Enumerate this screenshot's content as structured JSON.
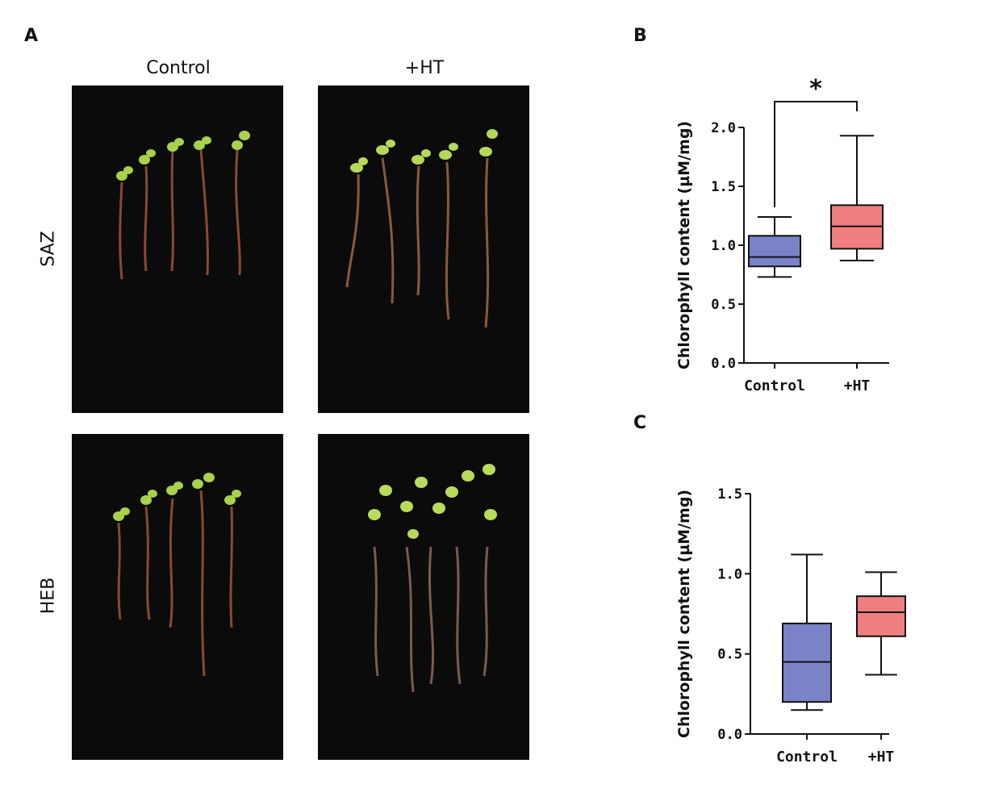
{
  "panels": {
    "a_label": "A",
    "b_label": "B",
    "c_label": "C"
  },
  "photos": {
    "columns": [
      "Control",
      "+HT"
    ],
    "rows": [
      "SAZ",
      "HEB"
    ]
  },
  "chart_data": [
    {
      "type": "box",
      "panel": "B",
      "title": "",
      "xlabel": "",
      "ylabel": "Chlorophyll content (µM/mg)",
      "categories": [
        "Control",
        "+HT"
      ],
      "ylim": [
        0,
        2.0
      ],
      "yticks": [
        "0.0",
        "0.5",
        "1.0",
        "1.5",
        "2.0"
      ],
      "grid": false,
      "boxes": [
        {
          "category": "Control",
          "min": 0.73,
          "q1": 0.82,
          "median": 0.9,
          "q3": 1.08,
          "max": 1.24,
          "color": "#7b83c8"
        },
        {
          "category": "+HT",
          "min": 0.87,
          "q1": 0.97,
          "median": 1.16,
          "q3": 1.34,
          "max": 1.93,
          "color": "#ef7f7f"
        }
      ],
      "significance": {
        "between": [
          "Control",
          "+HT"
        ],
        "label": "*"
      }
    },
    {
      "type": "box",
      "panel": "C",
      "title": "",
      "xlabel": "",
      "ylabel": "Chlorophyll content (µM/mg)",
      "categories": [
        "Control",
        "+HT"
      ],
      "ylim": [
        0,
        1.5
      ],
      "yticks": [
        "0.0",
        "0.5",
        "1.0",
        "1.5"
      ],
      "grid": false,
      "boxes": [
        {
          "category": "Control",
          "min": 0.15,
          "q1": 0.2,
          "median": 0.45,
          "q3": 0.69,
          "max": 1.12,
          "color": "#7b83c8"
        },
        {
          "category": "+HT",
          "min": 0.37,
          "q1": 0.61,
          "median": 0.76,
          "q3": 0.86,
          "max": 1.01,
          "color": "#ef7f7f"
        }
      ]
    }
  ]
}
